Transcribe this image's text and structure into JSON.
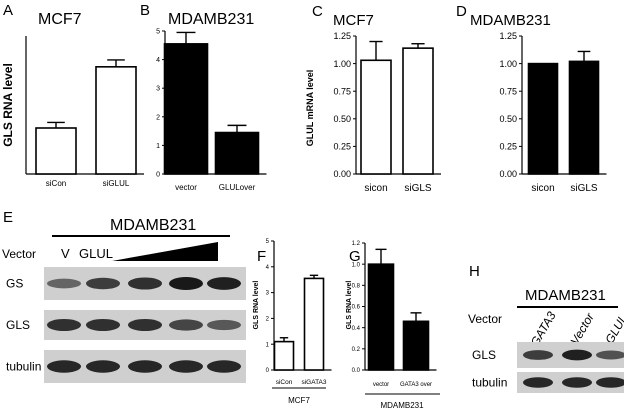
{
  "chart_data": [
    {
      "panel": "A",
      "type": "bar",
      "title": "MCF7",
      "ylabel": "GLS RNA level",
      "categories": [
        "siCon",
        "siGLUL"
      ],
      "values": [
        1.0,
        2.33
      ],
      "errors": [
        0.12,
        0.15
      ],
      "fills": [
        "#ffffff",
        "#ffffff"
      ],
      "ylim": [
        0,
        3
      ],
      "yticks": [],
      "yticklabels": []
    },
    {
      "panel": "B",
      "type": "bar",
      "title": "MDAMB231",
      "ylabel": "",
      "categories": [
        "vector",
        "GLULover"
      ],
      "values": [
        4.55,
        1.45
      ],
      "errors": [
        0.4,
        0.25
      ],
      "fills": [
        "#000000",
        "#000000"
      ],
      "ylim": [
        0,
        5
      ],
      "yticks": [
        0,
        1,
        2,
        3,
        4,
        5
      ],
      "yticklabels": [
        "0",
        "1",
        "2",
        "3",
        "4",
        "5"
      ]
    },
    {
      "panel": "C",
      "type": "bar",
      "title": "MCF7",
      "ylabel": "GLUL mRNA level",
      "categories": [
        "sicon",
        "siGLS"
      ],
      "values": [
        1.03,
        1.14
      ],
      "errors": [
        0.17,
        0.04
      ],
      "fills": [
        "#ffffff",
        "#ffffff"
      ],
      "ylim": [
        0,
        1.25
      ],
      "yticks": [
        0,
        0.25,
        0.5,
        0.75,
        1.0,
        1.25
      ],
      "yticklabels": [
        "0.00",
        "0.25",
        "0.50",
        "0.75",
        "1.00",
        "1.25"
      ]
    },
    {
      "panel": "D",
      "type": "bar",
      "title": "MDAMB231",
      "ylabel": "",
      "categories": [
        "sicon",
        "siGLS"
      ],
      "values": [
        1.0,
        1.02
      ],
      "errors": [
        0.0,
        0.09
      ],
      "fills": [
        "#000000",
        "#000000"
      ],
      "ylim": [
        0,
        1.25
      ],
      "yticks": [
        0,
        0.25,
        0.5,
        0.75,
        1.0,
        1.25
      ],
      "yticklabels": [
        "0.00",
        "0.25",
        "0.50",
        "0.75",
        "1.00",
        "1.25"
      ]
    },
    {
      "panel": "F",
      "type": "bar",
      "title": "",
      "ylabel": "GLS RNA level",
      "categories": [
        "siCon",
        "siGATA3"
      ],
      "values": [
        1.1,
        3.55
      ],
      "errors": [
        0.15,
        0.12
      ],
      "fills": [
        "#ffffff",
        "#ffffff"
      ],
      "ylim": [
        0,
        5
      ],
      "yticks": [
        0,
        1,
        2,
        3,
        4,
        5
      ],
      "yticklabels": [
        "0",
        "1",
        "2",
        "3",
        "4",
        "5"
      ],
      "group_label": "MCF7"
    },
    {
      "panel": "G",
      "type": "bar",
      "title": "",
      "ylabel": "GLS RNA level",
      "categories": [
        "vector",
        "GATA3 over"
      ],
      "values": [
        1.0,
        0.46
      ],
      "errors": [
        0.14,
        0.08
      ],
      "fills": [
        "#000000",
        "#000000"
      ],
      "ylim": [
        0,
        1.2
      ],
      "yticks": [
        0,
        0.2,
        0.4,
        0.6,
        0.8,
        1.0,
        1.2
      ],
      "yticklabels": [
        "0.0",
        "0.2",
        "0.4",
        "0.6",
        "0.8",
        "1.0",
        "1.2"
      ],
      "group_label": "MDAMB231"
    }
  ],
  "blot_e": {
    "panel": "E",
    "title": "MDAMB231",
    "vector_label": "Vector",
    "lane_labels": [
      "V",
      "GLUL"
    ],
    "rows": [
      {
        "label": "GS",
        "intensities": [
          0.45,
          0.75,
          0.85,
          1.0,
          0.95
        ]
      },
      {
        "label": "GLS",
        "intensities": [
          0.85,
          0.85,
          0.85,
          0.7,
          0.55
        ]
      },
      {
        "label": "tubulin",
        "intensities": [
          0.9,
          0.9,
          0.9,
          0.9,
          0.9
        ]
      }
    ]
  },
  "blot_h": {
    "panel": "H",
    "title": "MDAMB231",
    "vector_label": "Vector",
    "lane_labels": [
      "GATA3",
      "Vector",
      "GLUL"
    ],
    "rows": [
      {
        "label": "GLS",
        "intensities": [
          0.75,
          0.95,
          0.6
        ]
      },
      {
        "label": "tubulin",
        "intensities": [
          0.9,
          0.9,
          0.9
        ]
      }
    ]
  }
}
